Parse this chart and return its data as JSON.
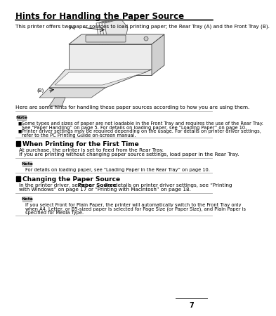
{
  "bg_color": "#ffffff",
  "title": "Hints for Handling the Paper Source",
  "intro": "This printer offers two paper sources to load printing paper; the Rear Tray (A) and the Front Tray (B).",
  "after_image": "Here are some hints for handling these paper sources according to how you are using them.",
  "note1_bullet1a": "Some types and sizes of paper are not loadable in the Front Tray and requires the use of the Rear Tray.",
  "note1_bullet1b": "See “Paper Handling” on page 5. For details on loading paper, see “Loading Paper” on page 10.",
  "note1_bullet2a": "Printer driver settings may be required depending on the usage. For details on printer driver settings,",
  "note1_bullet2b": "refer to the PC Printing Guide on-screen manual.",
  "section1_title": "When Printing for the First Time",
  "section1_line1": "At purchase, the printer is set to feed from the Rear Tray.",
  "section1_line2": "If you are printing without changing paper source settings, load paper in the Rear Tray.",
  "note2_line": "For details on loading paper, see “Loading Paper in the Rear Tray” on page 10.",
  "section2_title": "Changing the Paper Source",
  "section2_line1": "In the printer driver, select a Paper Source. For details on printer driver settings, see “Printing",
  "section2_line1b": "Paper Source",
  "section2_line2": "with Windows” on page 17 or “Printing with Macintosh” on page 18.",
  "note3_line1": "If you select Front for Plain Paper, the printer will automatically switch to the Front Tray only",
  "note3_line1b": "Front",
  "note3_line1c": "Plain Paper",
  "note3_line2": "when A4, Letter, or B5-sized paper is selected for Page Size (or Paper Size), and Plain Paper is",
  "note3_line2b": "Page Size",
  "note3_line2c": "Paper Size",
  "note3_line2d": "Plain Paper",
  "note3_line3": "specified for Media Type.",
  "note3_line3b": "Media Type",
  "page_num": "7",
  "note_icon_color": "#888888",
  "divider_color": "#aaaaaa",
  "title_underline_color": "#555555"
}
